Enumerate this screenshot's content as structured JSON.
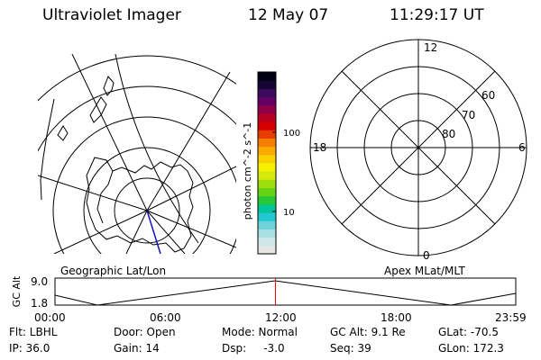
{
  "header": {
    "instrument": "Ultraviolet Imager",
    "date": "12 May 07",
    "time": "11:29:17 UT"
  },
  "colorbar": {
    "label": "photon cm^-2 s^-1",
    "ticks": [
      "100",
      "10"
    ],
    "colors": [
      "#e6e6e6",
      "#cfe8e8",
      "#a9dfe2",
      "#6fd3dc",
      "#22c7d1",
      "#00c49a",
      "#27c93a",
      "#66d313",
      "#9fdd0d",
      "#d7e80b",
      "#f4f200",
      "#f9d000",
      "#fbaa00",
      "#f57f00",
      "#e83d00",
      "#d40000",
      "#b6001f",
      "#8f0048",
      "#650063",
      "#3b0a5c",
      "#170634",
      "#000010"
    ]
  },
  "left_plot": {
    "caption": "Geographic Lat/Lon"
  },
  "right_plot": {
    "caption": "Apex MLat/MLT",
    "mlt_labels": [
      "12",
      "18",
      "6",
      "0"
    ],
    "mlat_labels": [
      "60",
      "70",
      "80"
    ]
  },
  "timeline": {
    "ylabel": "GC Alt",
    "ytick_top": "9.0",
    "ytick_bottom": "1.8",
    "xticks": [
      "00:00",
      "06:00",
      "12:00",
      "18:00",
      "23:59"
    ],
    "current_time_fraction": 0.4786,
    "marker_color": "#e00000"
  },
  "info": {
    "filter": "Flt: LBHL",
    "door": "Door: Open",
    "mode": "Mode: Normal",
    "gc_alt": "GC Alt: 9.1 Re",
    "glat": "GLat: -70.5",
    "ip": "IP: 36.0",
    "gain": "Gain: 14",
    "dsp": "Dsp:     -3.0",
    "seq": "Seq: 39",
    "glon": "GLon: 172.3"
  }
}
